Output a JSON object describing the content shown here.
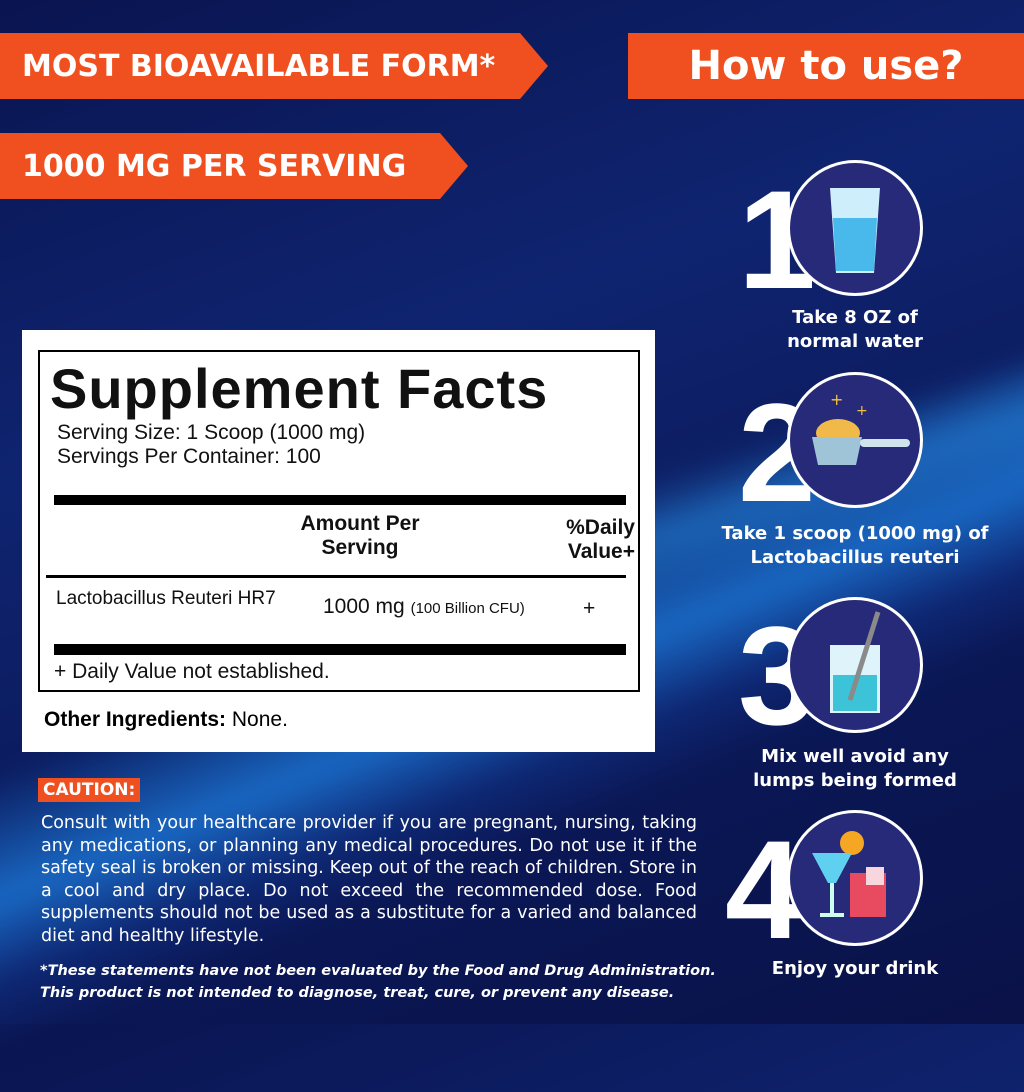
{
  "banners": {
    "bioavailable": "MOST BIOAVAILABLE FORM*",
    "dose": "1000 MG PER SERVING",
    "how_to": "How to use?"
  },
  "facts": {
    "title": "Supplement Facts",
    "serving_size": "Serving Size: 1 Scoop (1000 mg)",
    "servings_per_container": "Servings Per Container: 100",
    "col_amount": "Amount Per Serving",
    "col_dv": "%Daily Value+",
    "row": {
      "name": "Lactobacillus Reuteri HR7",
      "amount": "1000 mg",
      "cfu": "(100 Billion CFU)",
      "dv": "+"
    },
    "footnote": "+ Daily Value not established."
  },
  "other_ingredients": {
    "label": "Other Ingredients:",
    "value": " None."
  },
  "caution": {
    "label": "CAUTION:",
    "text": "Consult with your healthcare provider if you are pregnant, nursing, taking any medications, or planning any medical procedures. Do not use it if the safety seal is broken or missing. Keep out of the reach of children. Store in a cool and dry place. Do not exceed the recommended dose. Food supplements should not be used as a substitute for a varied and balanced diet and healthy lifestyle."
  },
  "disclaimer": {
    "line1": "*These statements have not been evaluated by the Food and Drug Administration.",
    "line2": "This product is not intended to diagnose, treat, cure, or prevent any disease."
  },
  "steps": [
    {
      "num": "1",
      "text1": "Take 8 OZ of",
      "text2": "normal water",
      "icon": "glass-of-water-icon"
    },
    {
      "num": "2",
      "text1": "Take 1 scoop (1000 mg) of",
      "text2": "Lactobacillus reuteri",
      "icon": "powder-scoop-icon"
    },
    {
      "num": "3",
      "text1": "Mix well avoid any",
      "text2": "lumps being formed",
      "icon": "stirring-glass-icon"
    },
    {
      "num": "4",
      "text1": "Enjoy your drink",
      "text2": "",
      "icon": "drinks-icon"
    }
  ],
  "colors": {
    "accent": "#f0501f",
    "background": "#0b1a5c"
  }
}
